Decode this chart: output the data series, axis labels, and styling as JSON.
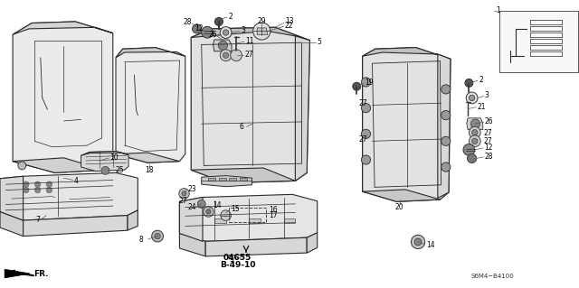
{
  "bg_color": "#ffffff",
  "line_color": "#2a2a2a",
  "part_code": "S6M4-B4100",
  "diagram_code_1": "04655",
  "diagram_code_2": "B-49-10"
}
